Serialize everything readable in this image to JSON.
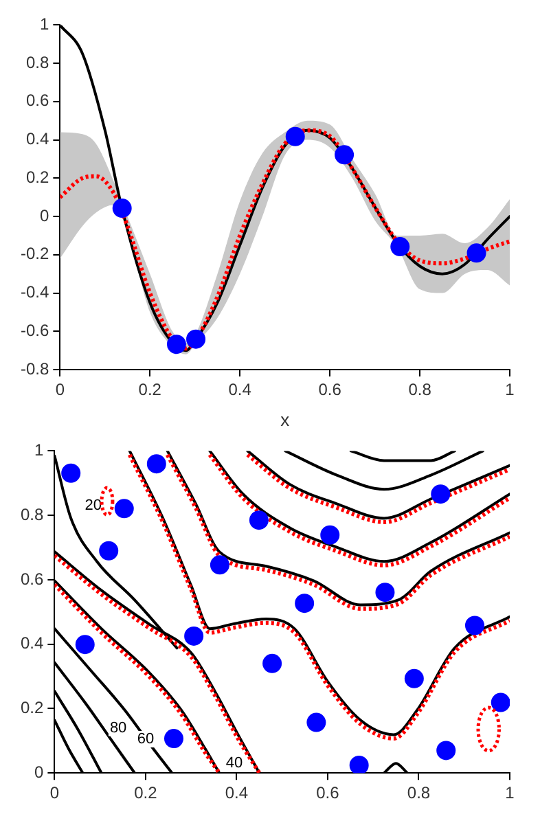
{
  "chart_data": [
    {
      "type": "line",
      "xlabel": "x",
      "xlim": [
        0,
        1
      ],
      "ylim": [
        -0.8,
        1
      ],
      "xticks": [
        0,
        0.2,
        0.4,
        0.6,
        0.8,
        1
      ],
      "yticks": [
        -0.8,
        -0.6,
        -0.4,
        -0.2,
        0,
        0.2,
        0.4,
        0.6,
        0.8,
        1
      ],
      "grid": false,
      "legend": false,
      "series": [
        {
          "color": "#000000",
          "marker": "none",
          "x": [
            0,
            0.05,
            0.1,
            0.138,
            0.2,
            0.25,
            0.28,
            0.3,
            0.35,
            0.4,
            0.45,
            0.5,
            0.55,
            0.6,
            0.65,
            0.7,
            0.75,
            0.8,
            0.85,
            0.9,
            0.95,
            1
          ],
          "values": [
            1,
            0.85,
            0.45,
            0.04,
            -0.45,
            -0.66,
            -0.7,
            -0.65,
            -0.45,
            -0.15,
            0.15,
            0.37,
            0.45,
            0.41,
            0.25,
            0.05,
            -0.14,
            -0.26,
            -0.3,
            -0.25,
            -0.12,
            0
          ]
        },
        {
          "line_style": "dotted",
          "marker": "none",
          "color": "#ff0000",
          "x": [
            0,
            0.05,
            0.08,
            0.12,
            0.15,
            0.2,
            0.25,
            0.28,
            0.3,
            0.35,
            0.4,
            0.45,
            0.5,
            0.55,
            0.6,
            0.65,
            0.7,
            0.75,
            0.8,
            0.85,
            0.9,
            0.95,
            1
          ],
          "values": [
            0.1,
            0.2,
            0.21,
            0.12,
            -0.05,
            -0.4,
            -0.64,
            -0.69,
            -0.65,
            -0.42,
            -0.1,
            0.17,
            0.38,
            0.45,
            0.42,
            0.25,
            0.05,
            -0.13,
            -0.23,
            -0.245,
            -0.22,
            -0.17,
            -0.13
          ],
          "lower": [
            -0.22,
            -0.05,
            0.02,
            0.06,
            -0.08,
            -0.5,
            -0.68,
            -0.72,
            -0.67,
            -0.53,
            -0.3,
            0,
            0.32,
            0.4,
            0.36,
            0.2,
            -0.02,
            -0.16,
            -0.38,
            -0.4,
            -0.3,
            -0.28,
            -0.36
          ],
          "upper": [
            0.44,
            0.43,
            0.38,
            0.18,
            0,
            -0.3,
            -0.6,
            -0.66,
            -0.62,
            -0.3,
            0.08,
            0.33,
            0.44,
            0.5,
            0.48,
            0.3,
            0.12,
            -0.1,
            -0.1,
            -0.09,
            -0.14,
            -0.06,
            0.09
          ]
        },
        {
          "type": "scatter",
          "marker": "circle",
          "color": "#0000ff",
          "x": [
            0.138,
            0.259,
            0.302,
            0.523,
            0.632,
            0.756,
            0.926
          ],
          "values": [
            0.043,
            -0.668,
            -0.641,
            0.417,
            0.322,
            -0.158,
            -0.191
          ]
        }
      ]
    },
    {
      "type": "line",
      "xlim": [
        0,
        1
      ],
      "ylim": [
        0,
        1
      ],
      "xticks": [
        0,
        0.2,
        0.4,
        0.6,
        0.8,
        1
      ],
      "yticks": [
        0,
        0.2,
        0.4,
        0.6,
        0.8,
        1
      ],
      "grid": false,
      "legend": false,
      "annotations": [
        "20",
        "40",
        "60",
        "80"
      ],
      "series": [
        {
          "color": "#000000",
          "marker": "none",
          "x": [
            0,
            0.103,
            0.207,
            0.3,
            0.352,
            0.403,
            0.45
          ],
          "values": [
            0.687,
            0.567,
            0.463,
            0.373,
            0.254,
            0.119,
            0
          ]
        },
        {
          "color": "#000000",
          "marker": "none",
          "x": [
            0,
            0.103,
            0.207,
            0.279,
            0.331,
            0.362
          ],
          "values": [
            0.597,
            0.448,
            0.313,
            0.194,
            0.075,
            0
          ]
        },
        {
          "color": "#000000",
          "marker": "none",
          "x": [
            0,
            0.083,
            0.155,
            0.217,
            0.258
          ],
          "values": [
            0.448,
            0.313,
            0.194,
            0.075,
            0
          ]
        },
        {
          "color": "#000000",
          "marker": "none",
          "x": [
            0,
            0.072,
            0.124,
            0.176
          ],
          "values": [
            0.343,
            0.209,
            0.104,
            0
          ]
        },
        {
          "color": "#000000",
          "marker": "none",
          "x": [
            0,
            0.052,
            0.103
          ],
          "values": [
            0.254,
            0.134,
            0
          ]
        },
        {
          "color": "#000000",
          "marker": "none",
          "x": [
            0,
            0.031,
            0.062
          ],
          "values": [
            0.164,
            0.075,
            0
          ]
        },
        {
          "color": "#000000",
          "marker": "none",
          "x": [
            0.165,
            0.238,
            0.3,
            0.341,
            0.393,
            0.465,
            0.527,
            0.6,
            0.672,
            0.745,
            0.796,
            0.879,
            1
          ],
          "values": [
            1,
            0.791,
            0.582,
            0.448,
            0.463,
            0.478,
            0.448,
            0.284,
            0.164,
            0.119,
            0.194,
            0.388,
            0.485
          ]
        },
        {
          "color": "#000000",
          "marker": "none",
          "x": [
            0.248,
            0.31,
            0.362,
            0.465,
            0.569,
            0.672,
            0.755,
            0.827,
            1
          ],
          "values": [
            1,
            0.836,
            0.687,
            0.642,
            0.597,
            0.522,
            0.537,
            0.627,
            0.746
          ]
        },
        {
          "color": "#000000",
          "marker": "none",
          "x": [
            0.341,
            0.414,
            0.517,
            0.62,
            0.724,
            0.827,
            1
          ],
          "values": [
            1,
            0.866,
            0.761,
            0.701,
            0.657,
            0.716,
            0.866
          ]
        },
        {
          "color": "#000000",
          "marker": "none",
          "x": [
            0.424,
            0.517,
            0.62,
            0.724,
            0.827,
            1
          ],
          "values": [
            1,
            0.896,
            0.836,
            0.791,
            0.851,
            0.955
          ]
        },
        {
          "color": "#000000",
          "marker": "none",
          "x": [
            0.507,
            0.62,
            0.724,
            0.827,
            0.941
          ],
          "values": [
            1,
            0.925,
            0.881,
            0.925,
            1
          ]
        },
        {
          "color": "#000000",
          "marker": "none",
          "x": [
            0.651,
            0.724,
            0.827,
            0.879
          ],
          "values": [
            1,
            0.97,
            0.97,
            1
          ]
        },
        {
          "color": "#000000",
          "marker": "none",
          "x": [
            0,
            0.036,
            0.093,
            0.176,
            0.269
          ],
          "values": [
            0.985,
            0.791,
            0.657,
            0.537,
            0.388
          ]
        },
        {
          "color": "#000000",
          "marker": "none",
          "x": [
            0.724,
            0.75,
            0.775
          ],
          "values": [
            0,
            0.03,
            0
          ]
        },
        {
          "line_style": "dotted",
          "marker": "none",
          "color": "#ff0000",
          "x": [
            0,
            0.103,
            0.207,
            0.3,
            0.352,
            0.403,
            0.45
          ],
          "values": [
            0.675,
            0.555,
            0.451,
            0.361,
            0.242,
            0.107,
            0
          ]
        },
        {
          "line_style": "dotted",
          "marker": "none",
          "color": "#ff0000",
          "x": [
            0,
            0.103,
            0.207,
            0.279,
            0.331,
            0.362
          ],
          "values": [
            0.585,
            0.436,
            0.301,
            0.182,
            0.063,
            0
          ]
        },
        {
          "line_style": "dotted",
          "marker": "none",
          "color": "#ff0000",
          "x": [
            0.165,
            0.238,
            0.3,
            0.341,
            0.393,
            0.465,
            0.527,
            0.6,
            0.672,
            0.745,
            0.796,
            0.879,
            1
          ],
          "values": [
            0.988,
            0.779,
            0.57,
            0.436,
            0.451,
            0.466,
            0.436,
            0.272,
            0.152,
            0.107,
            0.182,
            0.376,
            0.473
          ]
        },
        {
          "line_style": "dotted",
          "marker": "none",
          "color": "#ff0000",
          "x": [
            0.248,
            0.31,
            0.362,
            0.465,
            0.569,
            0.672,
            0.755,
            0.827,
            1
          ],
          "values": [
            0.988,
            0.824,
            0.675,
            0.63,
            0.585,
            0.51,
            0.525,
            0.615,
            0.734
          ]
        },
        {
          "line_style": "dotted",
          "marker": "none",
          "color": "#ff0000",
          "x": [
            0.341,
            0.414,
            0.517,
            0.62,
            0.724,
            0.827,
            1
          ],
          "values": [
            0.988,
            0.854,
            0.749,
            0.689,
            0.645,
            0.704,
            0.854
          ]
        },
        {
          "line_style": "dotted",
          "marker": "none",
          "color": "#ff0000",
          "x": [
            0.424,
            0.517,
            0.62,
            0.724,
            0.827,
            1
          ],
          "values": [
            0.988,
            0.884,
            0.824,
            0.779,
            0.839,
            0.943
          ]
        },
        {
          "type": "scatter",
          "marker": "circle",
          "color": "#0000ff",
          "x": [
            0.036,
            0.153,
            0.119,
            0.067,
            0.224,
            0.363,
            0.306,
            0.449,
            0.478,
            0.605,
            0.549,
            0.575,
            0.262,
            0.726,
            0.79,
            0.848,
            0.923,
            0.86,
            0.98,
            0.669
          ],
          "values": [
            0.931,
            0.821,
            0.69,
            0.399,
            0.96,
            0.646,
            0.425,
            0.785,
            0.34,
            0.739,
            0.527,
            0.157,
            0.107,
            0.561,
            0.293,
            0.866,
            0.458,
            0.07,
            0.219,
            0.024
          ]
        }
      ]
    }
  ]
}
